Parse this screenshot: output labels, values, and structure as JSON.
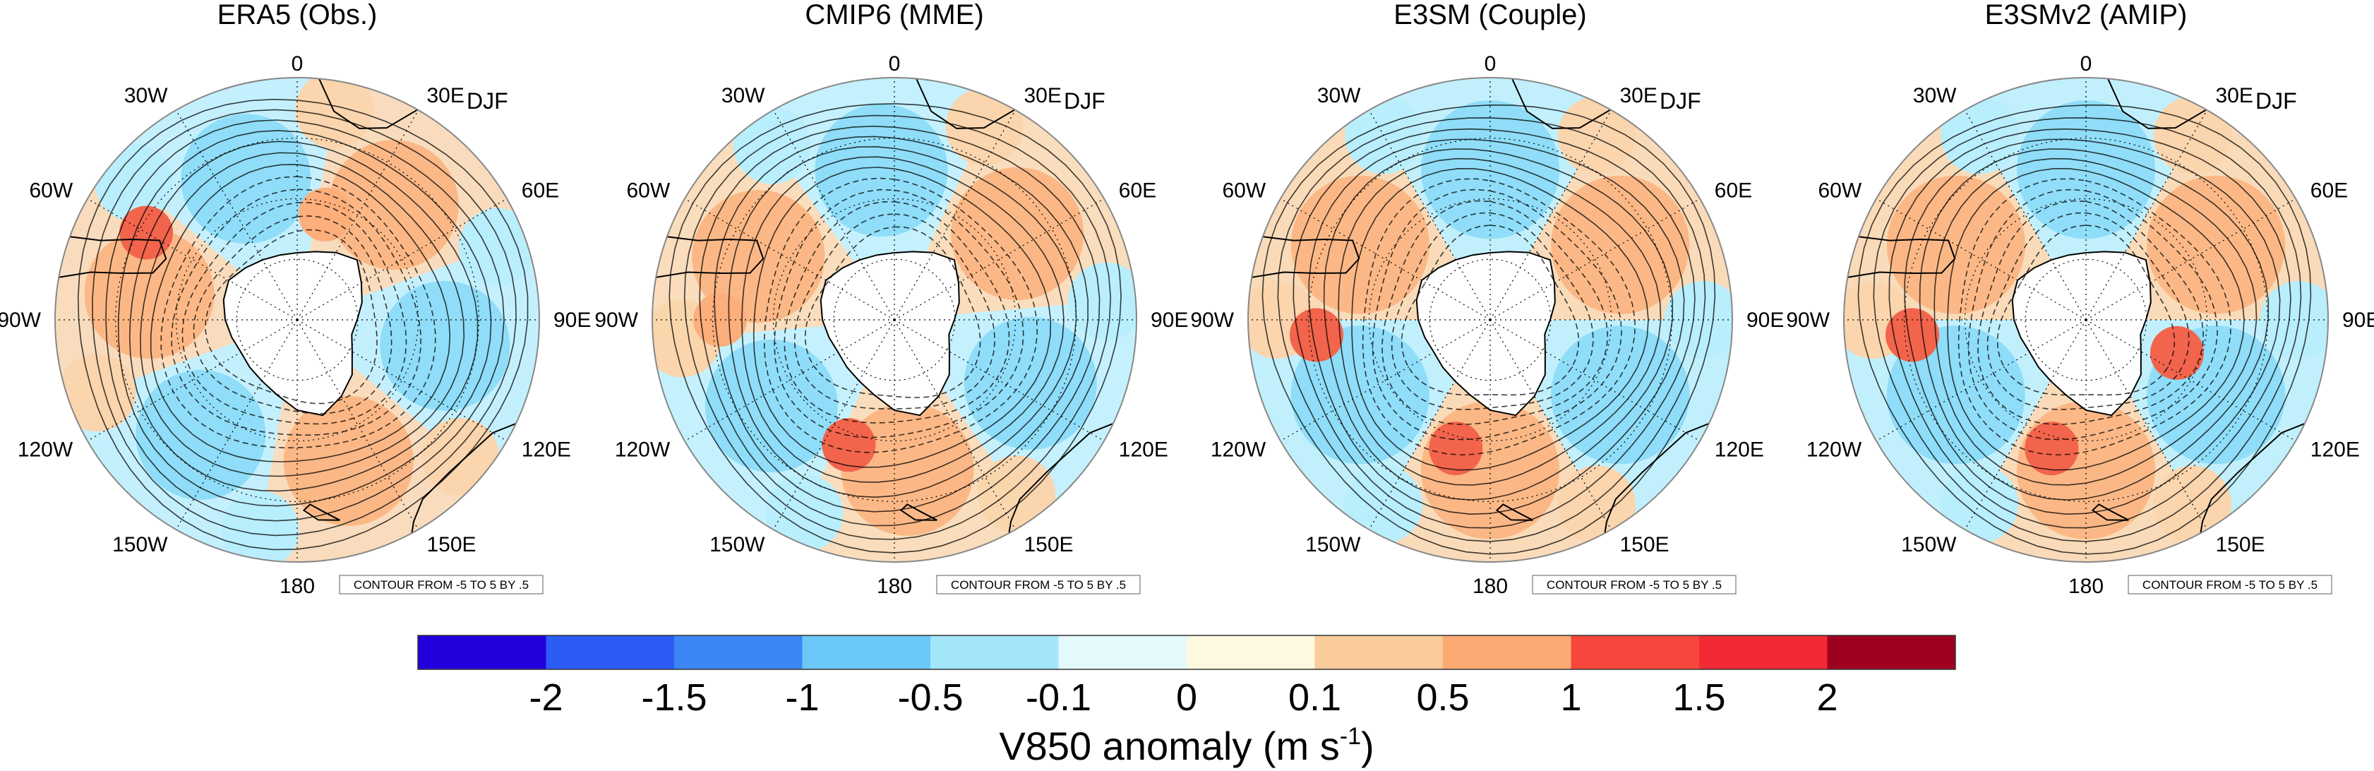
{
  "chart_data": {
    "type": "polar-map",
    "projection": "south-polar-stereographic",
    "variable": "V850 anomaly",
    "shading": "V850 anomaly",
    "contour_note": "CONTOUR FROM -5 TO 5 BY .5",
    "season": "DJF",
    "longitude_labels": [
      "0",
      "30E",
      "60E",
      "90E",
      "120E",
      "150E",
      "180",
      "150W",
      "120W",
      "90W",
      "60W",
      "30W"
    ],
    "panels": [
      {
        "title": "ERA5 (Obs.)",
        "wave_number": 3,
        "phase_deg": 10,
        "amplitude": 0.55,
        "strong_patches": [
          {
            "lon_deg": 300,
            "colat_frac": 0.72,
            "color": "#f2644c"
          },
          {
            "lon_deg": 15,
            "colat_frac": 0.45,
            "color": "#fcae7b"
          }
        ]
      },
      {
        "title": "CMIP6 (MME)",
        "wave_number": 3,
        "phase_deg": 25,
        "amplitude": 0.6,
        "strong_patches": [
          {
            "lon_deg": 200,
            "colat_frac": 0.55,
            "color": "#f2644c"
          },
          {
            "lon_deg": 270,
            "colat_frac": 0.72,
            "color": "#fcae7b"
          }
        ]
      },
      {
        "title": "E3SM (Couple)",
        "wave_number": 3,
        "phase_deg": 30,
        "amplitude": 0.7,
        "strong_patches": [
          {
            "lon_deg": 195,
            "colat_frac": 0.55,
            "color": "#f2644c"
          },
          {
            "lon_deg": 265,
            "colat_frac": 0.72,
            "color": "#f2644c"
          }
        ]
      },
      {
        "title": "E3SMv2 (AMIP)",
        "wave_number": 3,
        "phase_deg": 30,
        "amplitude": 0.7,
        "strong_patches": [
          {
            "lon_deg": 195,
            "colat_frac": 0.55,
            "color": "#f2644c"
          },
          {
            "lon_deg": 265,
            "colat_frac": 0.72,
            "color": "#f2644c"
          },
          {
            "lon_deg": 110,
            "colat_frac": 0.4,
            "color": "#f2644c"
          }
        ]
      }
    ],
    "colorbar": {
      "label": "V850 anomaly (m s",
      "label_sup": "-1",
      "label_close": ")",
      "ticks": [
        "-2",
        "-1.5",
        "-1",
        "-0.5",
        "-0.1",
        "0",
        "0.1",
        "0.5",
        "1",
        "1.5",
        "2"
      ],
      "colors": [
        "#2200dd",
        "#2b5cf5",
        "#3d86f5",
        "#6bc8f8",
        "#a3e6fa",
        "#e4f9fb",
        "#fdf9e0",
        "#f9ca9a",
        "#fbaa74",
        "#f9463c",
        "#f22a36",
        "#a00020"
      ]
    }
  }
}
